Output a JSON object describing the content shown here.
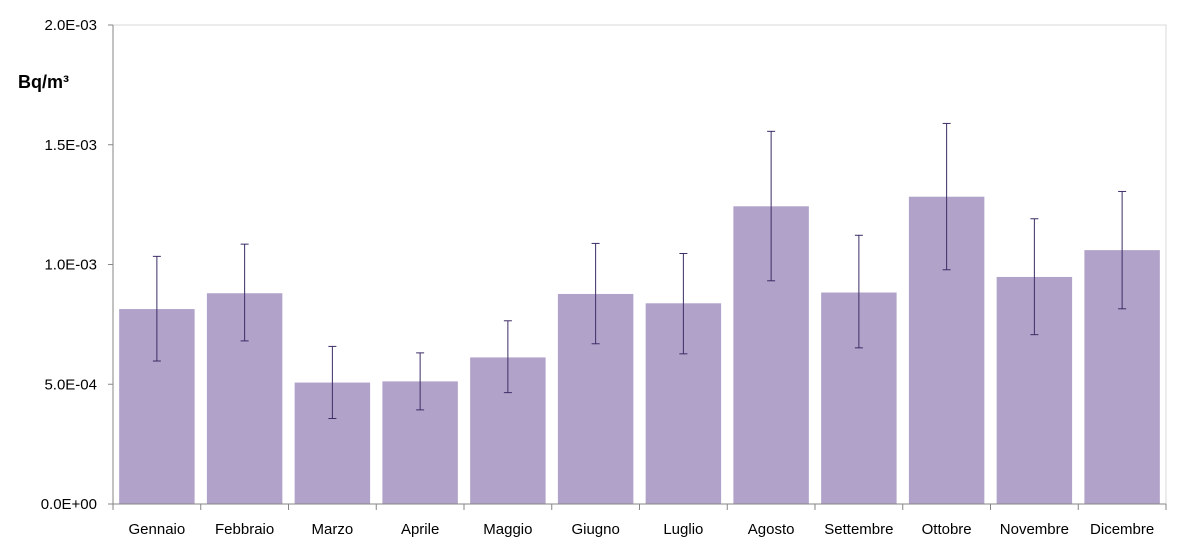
{
  "chart_data": {
    "type": "bar",
    "ylabel": "Bq/m³",
    "categories": [
      "Gennaio",
      "Febbraio",
      "Marzo",
      "Aprile",
      "Maggio",
      "Giugno",
      "Luglio",
      "Agosto",
      "Settembre",
      "Ottobre",
      "Novembre",
      "Dicembre"
    ],
    "series": [
      {
        "values": [
          0.000814,
          0.00088,
          0.000507,
          0.000512,
          0.000612,
          0.000877,
          0.000838,
          0.001243,
          0.000883,
          0.001283,
          0.000948,
          0.00106
        ],
        "error_low": [
          0.000597,
          0.000681,
          0.000357,
          0.000393,
          0.000465,
          0.000669,
          0.000627,
          0.000932,
          0.000652,
          0.000978,
          0.000707,
          0.000815
        ],
        "error_high": [
          0.001034,
          0.001085,
          0.000658,
          0.000631,
          0.000765,
          0.001088,
          0.001046,
          0.001556,
          0.001122,
          0.001589,
          0.001191,
          0.001305
        ]
      }
    ],
    "ylim": [
      0,
      0.002
    ],
    "yticks": [
      0,
      0.0005,
      0.001,
      0.0015,
      0.002
    ],
    "ytick_labels": [
      "0.0E+00",
      "5.0E-04",
      "1.0E-03",
      "1.5E-03",
      "2.0E-03"
    ],
    "grid": false,
    "colors": {
      "bar": "#b1a2c9",
      "error_bar": "#3d2c66",
      "axis": "#868686",
      "plot_border": "#d9d9d9"
    }
  }
}
